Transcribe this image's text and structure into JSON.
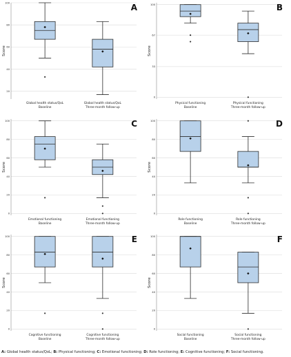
{
  "colors": {
    "box_fill": "#b8d1ea",
    "box_stroke": "#2b2b2b",
    "grid": "#d9d9d9",
    "axis": "#8a8a8a",
    "text": "#222222"
  },
  "chart_data": [
    {
      "type": "box",
      "panel_label": "A",
      "ylabel": "Score",
      "ylim": [
        13,
        100
      ],
      "yticks": [
        20,
        40,
        60,
        80,
        100
      ],
      "grid": true,
      "categories": [
        [
          "Global health status/QoL",
          "Baseline"
        ],
        [
          "Global health status/QoL",
          "Three-month follow-up"
        ]
      ],
      "boxes": [
        {
          "whisker_low": 50,
          "q1": 67,
          "median": 75,
          "q3": 83,
          "whisker_high": 100,
          "mean": 78,
          "outliers": [
            33
          ]
        },
        {
          "whisker_low": 17,
          "q1": 42,
          "median": 58,
          "q3": 67,
          "whisker_high": 83,
          "mean": 56,
          "outliers": []
        }
      ]
    },
    {
      "type": "box",
      "panel_label": "B",
      "ylabel": "Score",
      "ylim": [
        -2,
        102
      ],
      "yticks": [
        0,
        33,
        67,
        100
      ],
      "grid": true,
      "categories": [
        [
          "Physical functioning",
          "Baseline"
        ],
        [
          "Physical functioning",
          "Three-month follow-up"
        ]
      ],
      "boxes": [
        {
          "whisker_low": 80,
          "q1": 87,
          "median": 93,
          "q3": 100,
          "whisker_high": 100,
          "mean": 90,
          "outliers": [
            60,
            67
          ]
        },
        {
          "whisker_low": 47,
          "q1": 60,
          "median": 73,
          "q3": 80,
          "whisker_high": 93,
          "mean": 69,
          "outliers": [
            0
          ]
        }
      ]
    },
    {
      "type": "box",
      "panel_label": "C",
      "ylabel": "Score",
      "ylim": [
        -2,
        102
      ],
      "yticks": [
        0,
        20,
        40,
        60,
        80,
        100
      ],
      "grid": true,
      "categories": [
        [
          "Emotional functioning",
          "Baseline"
        ],
        [
          "Emotional functioning",
          "Three-month follow-up"
        ]
      ],
      "boxes": [
        {
          "whisker_low": 50,
          "q1": 58,
          "median": 75,
          "q3": 83,
          "whisker_high": 100,
          "mean": 70,
          "outliers": [
            17
          ]
        },
        {
          "whisker_low": 17,
          "q1": 42,
          "median": 50,
          "q3": 58,
          "whisker_high": 75,
          "mean": 46,
          "outliers": [
            8,
            0
          ]
        }
      ]
    },
    {
      "type": "box",
      "panel_label": "D",
      "ylabel": "Score",
      "ylim": [
        -2,
        102
      ],
      "yticks": [
        0,
        20,
        40,
        60,
        80,
        100
      ],
      "grid": true,
      "categories": [
        [
          "Role functioning",
          "Baseline"
        ],
        [
          "Role functioning",
          "Three-month follow-up"
        ]
      ],
      "boxes": [
        {
          "whisker_low": 33,
          "q1": 67,
          "median": 83,
          "q3": 100,
          "whisker_high": 100,
          "mean": 81,
          "outliers": []
        },
        {
          "whisker_low": 33,
          "q1": 50,
          "median": 50,
          "q3": 67,
          "whisker_high": 83,
          "mean": 52,
          "outliers": [
            100,
            17,
            0
          ]
        }
      ]
    },
    {
      "type": "box",
      "panel_label": "E",
      "ylabel": "Score",
      "ylim": [
        -2,
        102
      ],
      "yticks": [
        0,
        20,
        40,
        60,
        80,
        100
      ],
      "grid": true,
      "categories": [
        [
          "Cognitive functioning",
          "Baseline"
        ],
        [
          "Cognitive functioning",
          "Three-month follow-up"
        ]
      ],
      "boxes": [
        {
          "whisker_low": 50,
          "q1": 67,
          "median": 83,
          "q3": 100,
          "whisker_high": 100,
          "mean": 81,
          "outliers": [
            17
          ]
        },
        {
          "whisker_low": 33,
          "q1": 67,
          "median": 83,
          "q3": 100,
          "whisker_high": 100,
          "mean": 76,
          "outliers": [
            17,
            0
          ]
        }
      ]
    },
    {
      "type": "box",
      "panel_label": "F",
      "ylabel": "Score",
      "ylim": [
        -2,
        102
      ],
      "yticks": [
        0,
        20,
        40,
        60,
        80,
        100
      ],
      "grid": true,
      "categories": [
        [
          "Social functioning",
          "Baseline"
        ],
        [
          "Social functioning",
          "Three-month follow-up"
        ]
      ],
      "boxes": [
        {
          "whisker_low": 33,
          "q1": 67,
          "median": 100,
          "q3": 100,
          "whisker_high": 100,
          "mean": 87,
          "outliers": []
        },
        {
          "whisker_low": 17,
          "q1": 50,
          "median": 67,
          "q3": 83,
          "whisker_high": 83,
          "mean": 60,
          "outliers": [
            0
          ]
        }
      ]
    }
  ],
  "caption": [
    {
      "key": "A:",
      "text": " Global health status/QoL; "
    },
    {
      "key": "B:",
      "text": " Physical functioning; "
    },
    {
      "key": "C:",
      "text": " Emotional functioning; "
    },
    {
      "key": "D:",
      "text": " Role functioning; "
    },
    {
      "key": "E:",
      "text": " Cognitive functioning; "
    },
    {
      "key": "F:",
      "text": " Social functioning."
    }
  ]
}
